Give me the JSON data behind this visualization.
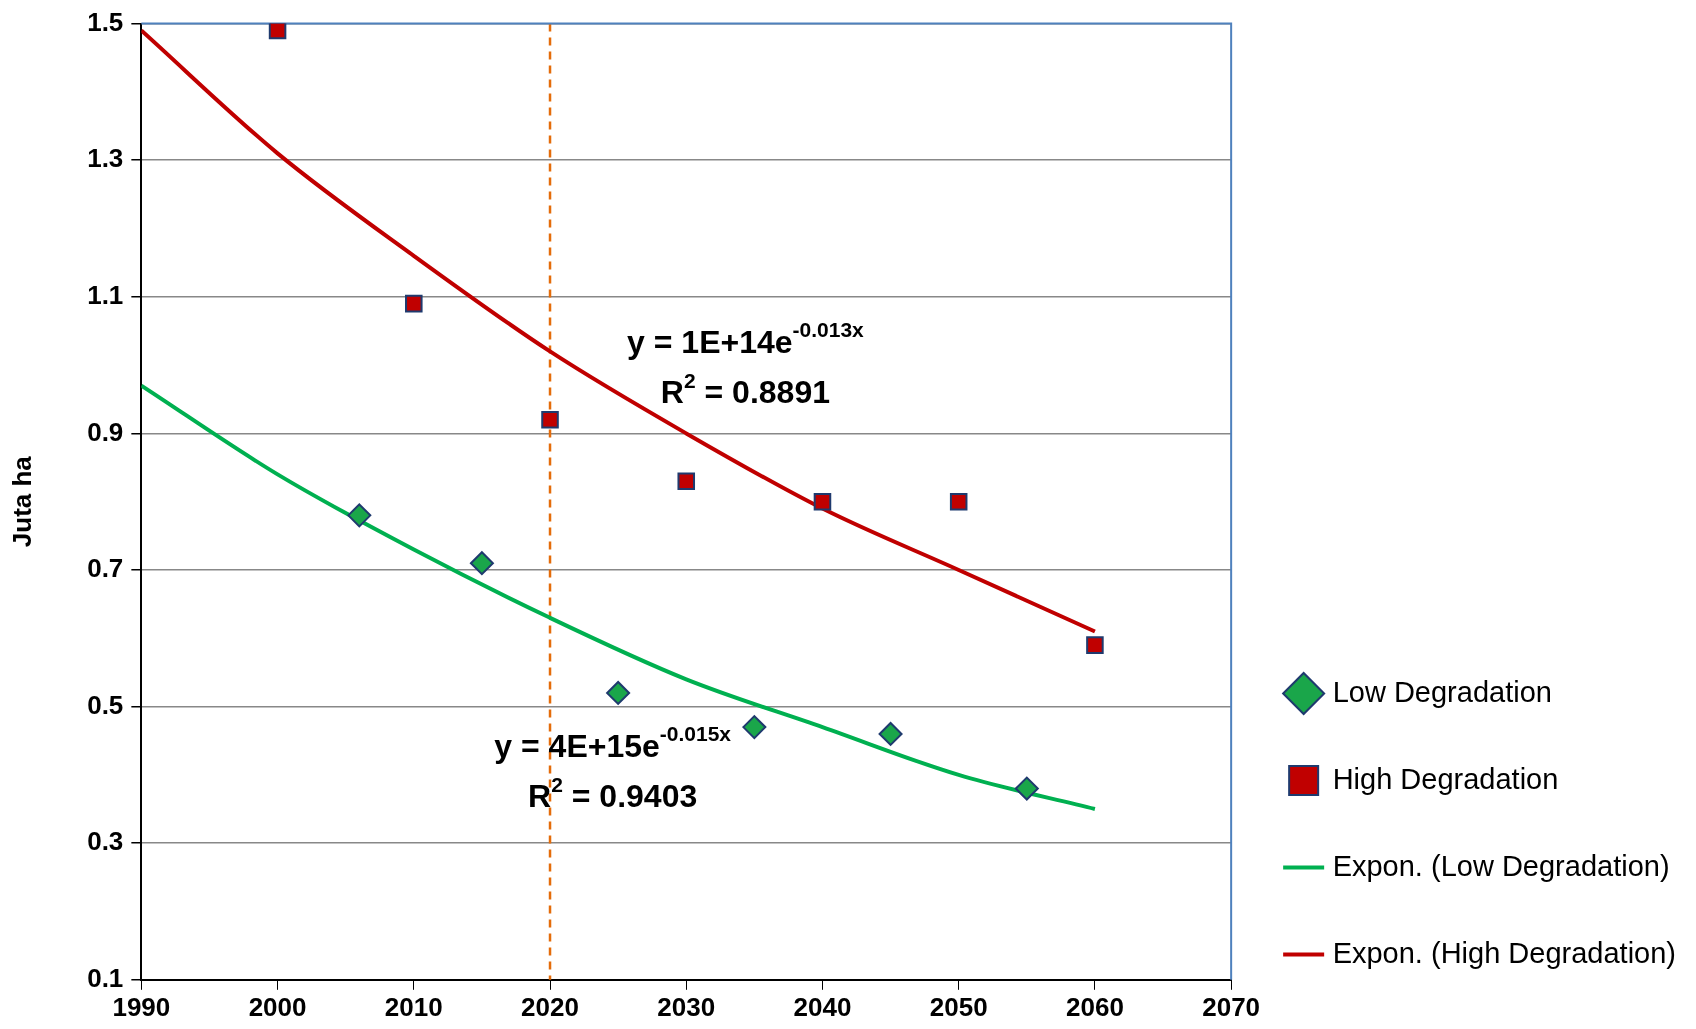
{
  "chart_data": {
    "type": "scatter",
    "ylabel": "Juta ha",
    "xlim": [
      1990,
      2070
    ],
    "xticks": [
      1990,
      2000,
      2010,
      2020,
      2030,
      2040,
      2050,
      2060,
      2070
    ],
    "ylim": [
      0.1,
      1.5
    ],
    "yticks": [
      0.1,
      0.3,
      0.5,
      0.7,
      0.9,
      1.1,
      1.3,
      1.5
    ],
    "grid": "y",
    "legend": "right",
    "series": [
      {
        "name": "Low Degradation",
        "type": "scatter",
        "marker": "diamond",
        "color": "#1aa64a",
        "x": [
          2006,
          2015,
          2025,
          2035,
          2045,
          2055
        ],
        "values": [
          0.78,
          0.71,
          0.52,
          0.47,
          0.46,
          0.38
        ]
      },
      {
        "name": "High Degradation",
        "type": "scatter",
        "marker": "square",
        "color": "#c00000",
        "x": [
          2000,
          2010,
          2020,
          2030,
          2040,
          2050,
          2060
        ],
        "values": [
          1.49,
          1.09,
          0.92,
          0.83,
          0.8,
          0.8,
          0.59
        ]
      },
      {
        "name": "Expon. (Low Degradation)",
        "type": "line",
        "marker": "none",
        "color": "#00b050",
        "x": [
          1990,
          2000,
          2010,
          2020,
          2030,
          2040,
          2050,
          2060
        ],
        "values": [
          0.97,
          0.84,
          0.73,
          0.63,
          0.54,
          0.47,
          0.4,
          0.35
        ]
      },
      {
        "name": "Expon. (High Degradation)",
        "type": "line",
        "marker": "none",
        "color": "#c00000",
        "x": [
          1990,
          2000,
          2010,
          2020,
          2030,
          2040,
          2050,
          2060
        ],
        "values": [
          1.49,
          1.31,
          1.16,
          1.02,
          0.9,
          0.79,
          0.7,
          0.61
        ]
      }
    ],
    "ref_lines": [
      {
        "axis": "x",
        "value": 2020,
        "color": "#e46c0a",
        "line_style": "dashed"
      }
    ],
    "annotations": [
      "y = 1E+14e$^{-0.013x}$",
      "R$^{2}$ = 0.8891",
      "y = 4E+15e$^{-0.015x}$",
      "R$^{2}$ = 0.9403"
    ]
  }
}
